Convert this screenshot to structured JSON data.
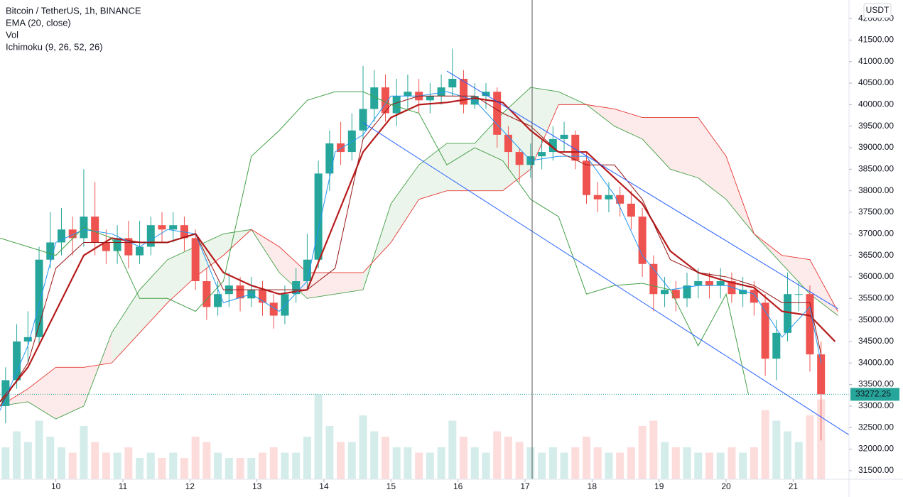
{
  "chart_data": {
    "type": "candlestick",
    "title": "Bitcoin / TetherUS, 1h, BINANCE",
    "indicators": [
      "EMA (20, close)",
      "Vol",
      "Ichimoku (9, 26, 52, 26)"
    ],
    "currency": "USDT",
    "x": [
      -18,
      -14,
      -10,
      -6,
      -2,
      2,
      6,
      10,
      14,
      18,
      22,
      26,
      30,
      34,
      38,
      42,
      46,
      50,
      54,
      58,
      62,
      66,
      70,
      74,
      78,
      82,
      86,
      90,
      94,
      98,
      102,
      106,
      110,
      114,
      118,
      122,
      126,
      130,
      134,
      138,
      142,
      146,
      150,
      154,
      158,
      162,
      166,
      170,
      174,
      178,
      182,
      186,
      190,
      194,
      198,
      202,
      206,
      210,
      214,
      218,
      222,
      226,
      230,
      234,
      238,
      242,
      246,
      250,
      254,
      258,
      262,
      266,
      270,
      274
    ],
    "open": [
      33000,
      33600,
      34500,
      34600,
      36400,
      36800,
      37100,
      36900,
      37400,
      36800,
      36600,
      36900,
      36500,
      36700,
      37200,
      37100,
      37200,
      36900,
      35900,
      35300,
      35600,
      35800,
      35500,
      35700,
      35400,
      35100,
      35600,
      35900,
      36400,
      38400,
      39100,
      38900,
      39400,
      39900,
      40400,
      39800,
      40200,
      40300,
      40100,
      40200,
      40400,
      40600,
      40000,
      40200,
      40300,
      39300,
      38900,
      38600,
      38800,
      38900,
      39200,
      39300,
      38700,
      37900,
      37800,
      37900,
      37700,
      37400,
      36300,
      35600,
      35700,
      35500,
      35800,
      35900,
      35800,
      35900,
      35600,
      35700,
      35400,
      34100,
      34700,
      35600,
      35600,
      34200
    ],
    "high": [
      33900,
      34900,
      35200,
      36700,
      37500,
      37600,
      37400,
      38500,
      38200,
      37100,
      37200,
      37300,
      37300,
      37400,
      37500,
      37500,
      37400,
      37100,
      36200,
      35900,
      36100,
      36000,
      36000,
      35900,
      35600,
      35800,
      36200,
      37000,
      38700,
      39400,
      39600,
      39800,
      40900,
      40800,
      40700,
      40600,
      40700,
      40600,
      40500,
      40700,
      41300,
      40800,
      40500,
      40500,
      40400,
      39500,
      39000,
      39100,
      39200,
      39500,
      39600,
      39400,
      38900,
      38200,
      38200,
      38100,
      38000,
      37600,
      36500,
      36000,
      35900,
      36100,
      36200,
      36100,
      36200,
      36100,
      36000,
      35900,
      35600,
      35000,
      36100,
      35900,
      35800,
      34500
    ],
    "low": [
      32600,
      33400,
      34000,
      34400,
      36200,
      36500,
      36500,
      36700,
      36500,
      36300,
      36300,
      36200,
      36300,
      36500,
      36800,
      36800,
      36600,
      35700,
      35000,
      35100,
      35300,
      35200,
      35300,
      35100,
      34800,
      34900,
      35400,
      35700,
      36200,
      38000,
      38600,
      38700,
      39200,
      39600,
      39600,
      39500,
      39900,
      39800,
      39800,
      40000,
      40200,
      39800,
      39900,
      39900,
      39000,
      38500,
      38200,
      38300,
      38500,
      38700,
      38900,
      38500,
      37700,
      37500,
      37500,
      37400,
      37100,
      36000,
      35200,
      35300,
      35200,
      35300,
      35500,
      35500,
      35500,
      35400,
      35300,
      35100,
      33700,
      33600,
      34500,
      35200,
      33800,
      32200
    ],
    "close": [
      33600,
      34500,
      34600,
      36400,
      36800,
      37100,
      36900,
      37400,
      36800,
      36600,
      36900,
      36500,
      36700,
      37200,
      37100,
      37200,
      36900,
      35900,
      35300,
      35600,
      35800,
      35500,
      35700,
      35400,
      35100,
      35600,
      35900,
      36400,
      38400,
      39100,
      38900,
      39400,
      39900,
      40400,
      39800,
      40200,
      40300,
      40100,
      40200,
      40400,
      40600,
      40000,
      40200,
      40300,
      39300,
      38900,
      38600,
      38800,
      38900,
      39200,
      39300,
      38700,
      37900,
      37800,
      37900,
      37700,
      37400,
      36300,
      35600,
      35700,
      35500,
      35800,
      35900,
      35800,
      35900,
      35600,
      35700,
      35400,
      34100,
      34700,
      35600,
      35600,
      34200,
      33272.25
    ],
    "volume": [
      3000,
      4500,
      3500,
      5500,
      4000,
      3000,
      2500,
      5000,
      3500,
      2500,
      2500,
      3000,
      2000,
      2500,
      2000,
      2500,
      2000,
      4000,
      3500,
      2500,
      2000,
      2000,
      2000,
      2500,
      3000,
      2500,
      2500,
      4000,
      8000,
      5000,
      3500,
      3500,
      6000,
      4500,
      4000,
      3000,
      3000,
      2500,
      2500,
      3000,
      5500,
      4000,
      3000,
      2500,
      4500,
      4000,
      3500,
      3000,
      2500,
      3000,
      2500,
      3000,
      4000,
      3000,
      2500,
      2500,
      3000,
      5000,
      5500,
      3500,
      3000,
      3000,
      2500,
      2500,
      2500,
      3000,
      2500,
      3000,
      6500,
      5500,
      4500,
      3500,
      6000,
      7500
    ],
    "volume_ylim": [
      0,
      10000
    ],
    "up_color": "#26a69a",
    "down_color": "#ef5350",
    "lines": [
      {
        "color": "#b71c1c",
        "width": 2.2,
        "x": [
          -20,
          -10,
          0,
          10,
          20,
          30,
          40,
          50,
          60,
          70,
          80,
          90,
          100,
          110,
          120,
          130,
          140,
          150,
          160,
          170,
          180,
          190,
          200,
          210,
          220,
          230,
          240,
          250,
          260,
          270,
          279
        ],
        "values": [
          33100,
          33900,
          35200,
          36500,
          36900,
          36800,
          36800,
          37000,
          36100,
          35800,
          35600,
          35700,
          37300,
          38900,
          39700,
          40000,
          40050,
          40150,
          40050,
          39400,
          38900,
          38900,
          38300,
          37700,
          36600,
          36100,
          35900,
          35750,
          35200,
          35100,
          34500
        ]
      },
      {
        "color": "#2196f3",
        "width": 1,
        "x": [
          -20,
          -10,
          0,
          10,
          20,
          30,
          40,
          50,
          60,
          70,
          80,
          90,
          100,
          110,
          120,
          130,
          140,
          150,
          160,
          170,
          180,
          190,
          200,
          210,
          220,
          230,
          240,
          250,
          260,
          270,
          274
        ],
        "values": [
          32900,
          34400,
          36800,
          37100,
          37000,
          36700,
          37100,
          37000,
          35400,
          35600,
          35200,
          35900,
          38900,
          39300,
          40200,
          40200,
          40300,
          40100,
          39400,
          38700,
          38800,
          38800,
          37900,
          36500,
          35700,
          35800,
          35800,
          35600,
          34600,
          35300,
          34000
        ]
      },
      {
        "color": "#991515",
        "width": 1,
        "x": [
          -20,
          -10,
          0,
          10,
          20,
          30,
          40,
          50,
          60,
          70,
          80,
          90,
          100,
          110,
          120,
          130,
          140,
          150,
          160,
          170,
          180,
          190,
          200,
          210,
          220,
          230,
          240,
          250,
          260,
          270,
          274
        ],
        "values": [
          33000,
          34000,
          36200,
          36800,
          36800,
          36800,
          36800,
          37000,
          35700,
          35700,
          35700,
          35700,
          36200,
          39200,
          40000,
          40200,
          40200,
          40200,
          39800,
          39500,
          38900,
          38600,
          38600,
          37800,
          36400,
          36100,
          36000,
          35800,
          35400,
          35400,
          34200
        ]
      },
      {
        "color": "#43a047",
        "width": 1,
        "x": [
          -20,
          -10,
          0,
          10,
          20,
          30,
          40,
          50,
          60,
          70,
          80,
          90,
          100,
          110,
          120,
          130,
          140,
          150,
          160,
          170,
          180,
          190,
          200,
          210,
          220,
          230,
          240,
          248
        ],
        "values": [
          36900,
          36700,
          36500,
          37150,
          36900,
          35500,
          35500,
          35200,
          35900,
          38800,
          39400,
          40100,
          40300,
          40300,
          40000,
          39800,
          38600,
          39000,
          38700,
          37800,
          37400,
          35600,
          35800,
          35850,
          35700,
          34400,
          35600,
          33270
        ]
      }
    ],
    "cloud": {
      "x": [
        -20,
        -10,
        0,
        10,
        20,
        30,
        40,
        50,
        60,
        70,
        80,
        90,
        100,
        110,
        120,
        130,
        140,
        150,
        160,
        170,
        180,
        190,
        200,
        210,
        220,
        230,
        240,
        250,
        260,
        270,
        280
      ],
      "lead_a": [
        33000,
        33100,
        32700,
        33000,
        34700,
        35700,
        36400,
        36700,
        37000,
        37100,
        36100,
        35500,
        35600,
        35700,
        37700,
        38600,
        39100,
        39100,
        39800,
        40400,
        40300,
        40000,
        39500,
        39200,
        38500,
        38300,
        37800,
        37000,
        36300,
        35600,
        35100
      ],
      "lead_b": [
        33000,
        33400,
        33900,
        33900,
        34000,
        34700,
        35400,
        36000,
        36500,
        37100,
        36700,
        36100,
        36100,
        36100,
        36800,
        37800,
        38000,
        38000,
        38000,
        38500,
        40000,
        40000,
        39900,
        39700,
        39700,
        39700,
        38800,
        37000,
        36500,
        36400,
        35200
      ],
      "a_color": "#43a047",
      "b_color": "#e53935"
    },
    "trendlines": [
      {
        "color": "#2962ff",
        "x": [
          140,
          280
        ],
        "values": [
          40780,
          35260
        ]
      },
      {
        "color": "#2962ff",
        "x": [
          110,
          284
        ],
        "values": [
          39580,
          32330
        ]
      }
    ],
    "xlim": [
      -20,
      284
    ],
    "xticks": [
      {
        "value": 0,
        "label": "10"
      },
      {
        "value": 24,
        "label": "11"
      },
      {
        "value": 48,
        "label": "12"
      },
      {
        "value": 72,
        "label": "13"
      },
      {
        "value": 96,
        "label": "14"
      },
      {
        "value": 120,
        "label": "15"
      },
      {
        "value": 144,
        "label": "16"
      },
      {
        "value": 168,
        "label": "17"
      },
      {
        "value": 192,
        "label": "18"
      },
      {
        "value": 216,
        "label": "19"
      },
      {
        "value": 240,
        "label": "20"
      },
      {
        "value": 264,
        "label": "21"
      }
    ],
    "ylim": [
      31300,
      42430
    ],
    "yticks": [
      {
        "value": 31500,
        "label": "31500.00"
      },
      {
        "value": 32000,
        "label": "32000.00"
      },
      {
        "value": 32500,
        "label": "32500.00"
      },
      {
        "value": 33000,
        "label": "33000.00"
      },
      {
        "value": 33500,
        "label": "33500.00"
      },
      {
        "value": 34000,
        "label": "34000.00"
      },
      {
        "value": 34500,
        "label": "34500.00"
      },
      {
        "value": 35000,
        "label": "35000.00"
      },
      {
        "value": 35500,
        "label": "35500.00"
      },
      {
        "value": 36000,
        "label": "36000.00"
      },
      {
        "value": 36500,
        "label": "36500.00"
      },
      {
        "value": 37000,
        "label": "37000.00"
      },
      {
        "value": 37500,
        "label": "37500.00"
      },
      {
        "value": 38000,
        "label": "38000.00"
      },
      {
        "value": 38500,
        "label": "38500.00"
      },
      {
        "value": 39000,
        "label": "39000.00"
      },
      {
        "value": 39500,
        "label": "39500.00"
      },
      {
        "value": 40000,
        "label": "40000.00"
      },
      {
        "value": 40500,
        "label": "40500.00"
      },
      {
        "value": 41000,
        "label": "41000.00"
      },
      {
        "value": 41500,
        "label": "41500.00"
      },
      {
        "value": 42000,
        "label": "42000.00"
      }
    ]
  }
}
